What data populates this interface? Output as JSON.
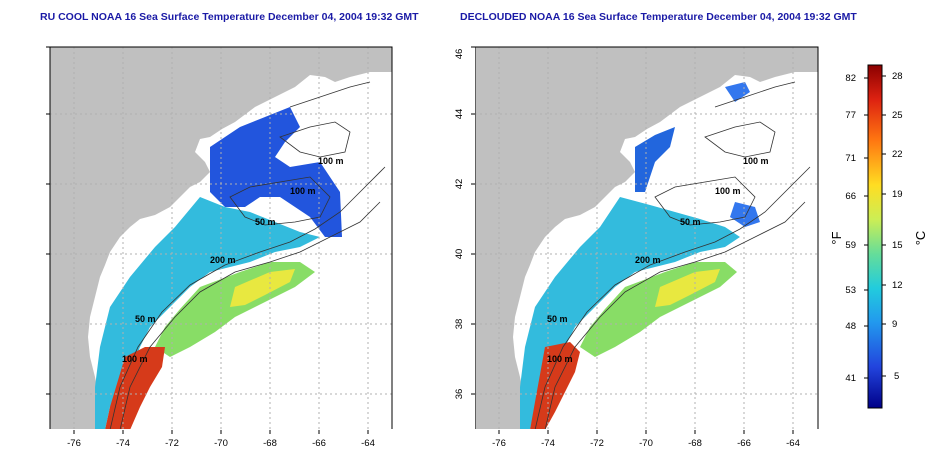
{
  "panels": [
    {
      "title": "RU COOL NOAA 16 Sea Surface Temperature December 04, 2004 19:32 GMT",
      "contour_labels": [
        "100 m",
        "100 m",
        "50 m",
        "200 m",
        "50 m",
        "100 m"
      ]
    },
    {
      "title": "DECLOUDED NOAA 16 Sea Surface Temperature December 04, 2004 19:32 GMT",
      "contour_labels": [
        "100 m",
        "100 m",
        "50 m",
        "200 m",
        "50 m",
        "100 m"
      ]
    }
  ],
  "axes": {
    "x_ticks": [
      "-76",
      "-74",
      "-72",
      "-70",
      "-68",
      "-66",
      "-64"
    ],
    "y_ticks": [
      "36",
      "38",
      "40",
      "42",
      "44",
      "46"
    ]
  },
  "colorbar": {
    "fahrenheit_ticks": [
      "82",
      "77",
      "71",
      "66",
      "59",
      "53",
      "48",
      "41"
    ],
    "celsius_ticks": [
      "28",
      "25",
      "22",
      "19",
      "15",
      "12",
      "9",
      "5"
    ],
    "fahrenheit_unit": "°F",
    "celsius_unit": "°C"
  },
  "colors": {
    "land": "#c0c0c0",
    "ocean_background": "#ffffff",
    "title": "#1a1aa6",
    "grid": "#b0b0b0"
  }
}
